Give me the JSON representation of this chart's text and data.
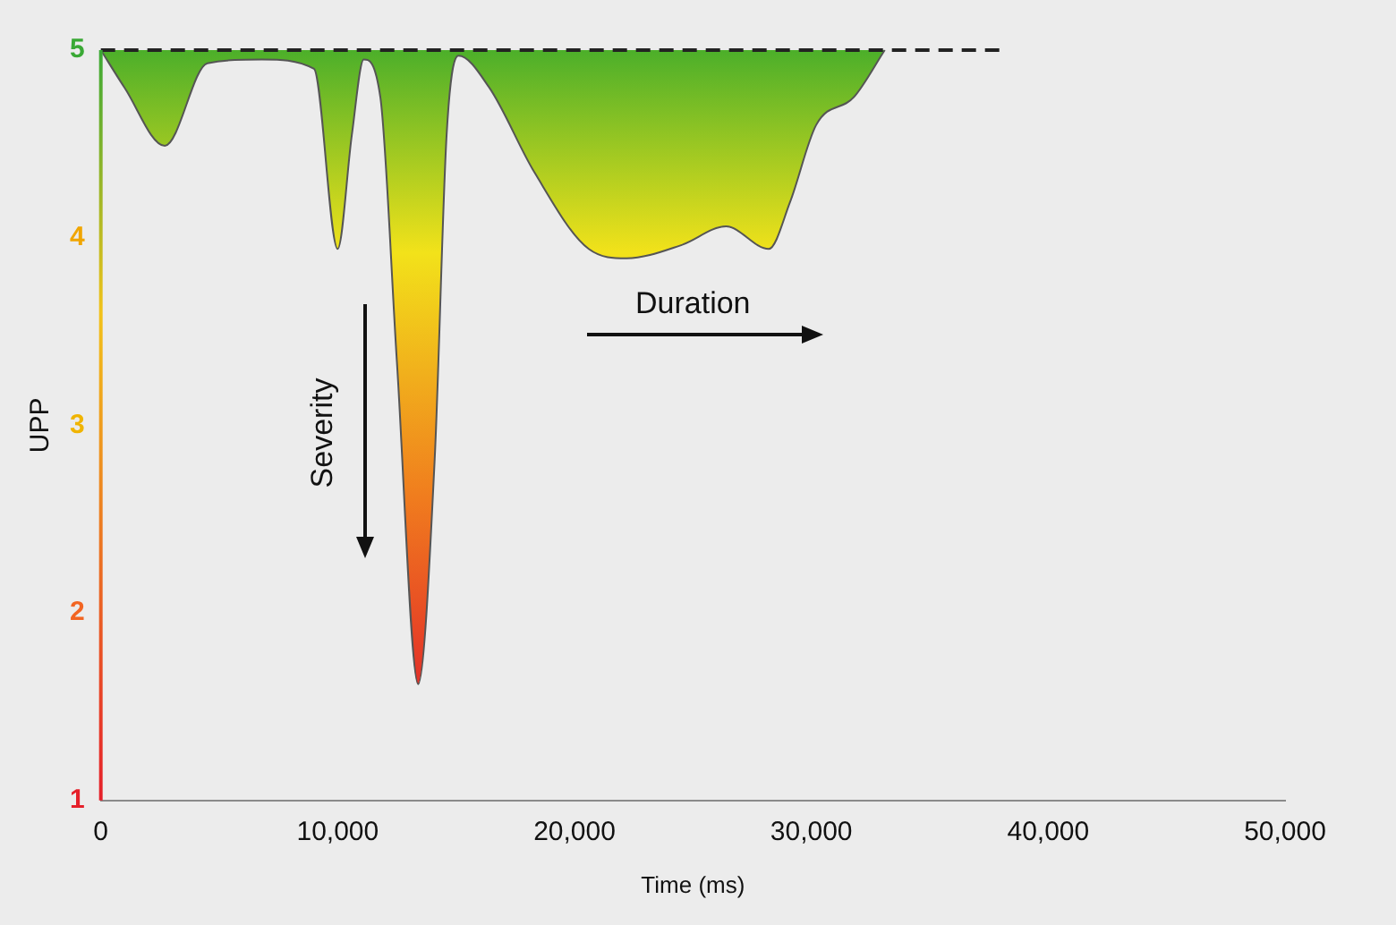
{
  "chart_data": {
    "type": "area",
    "xlabel": "Time (ms)",
    "ylabel": "UPP",
    "xlim": [
      0,
      50000
    ],
    "xticks": [
      0,
      {
        "value": 10000,
        "label": "10,000"
      },
      {
        "value": 20000,
        "label": "20,000"
      },
      {
        "value": 30000,
        "label": "30,000"
      },
      {
        "value": 40000,
        "label": "40,000"
      },
      {
        "value": 50000,
        "label": "50,000"
      }
    ],
    "ylim": [
      1,
      5
    ],
    "yticks": [
      1,
      2,
      3,
      4,
      5
    ],
    "grid": false,
    "legend": false,
    "annotations": [
      "Severity",
      "Duration"
    ],
    "series": [
      {
        "color": "#4caf2a",
        "x": [
          0,
          1000,
          2700,
          4500,
          6800,
          9000,
          10000,
          10600,
          11100,
          11800,
          12500,
          13400,
          14100,
          14600,
          15100,
          16400,
          18300,
          20600,
          22200,
          24500,
          26400,
          28200,
          29100,
          30200,
          31800,
          33100
        ],
        "values": [
          5,
          4.8,
          4.49,
          4.93,
          4.95,
          4.9,
          3.94,
          4.55,
          4.95,
          4.75,
          3.34,
          1.62,
          2.83,
          4.55,
          4.97,
          4.8,
          4.35,
          3.94,
          3.89,
          3.96,
          4.06,
          3.94,
          4.19,
          4.6,
          4.75,
          5
        ]
      },
      {
        "type": "line",
        "color": "#222222",
        "line_style": "dashed",
        "x": [
          0,
          38000
        ],
        "values": [
          5,
          5
        ]
      }
    ]
  }
}
